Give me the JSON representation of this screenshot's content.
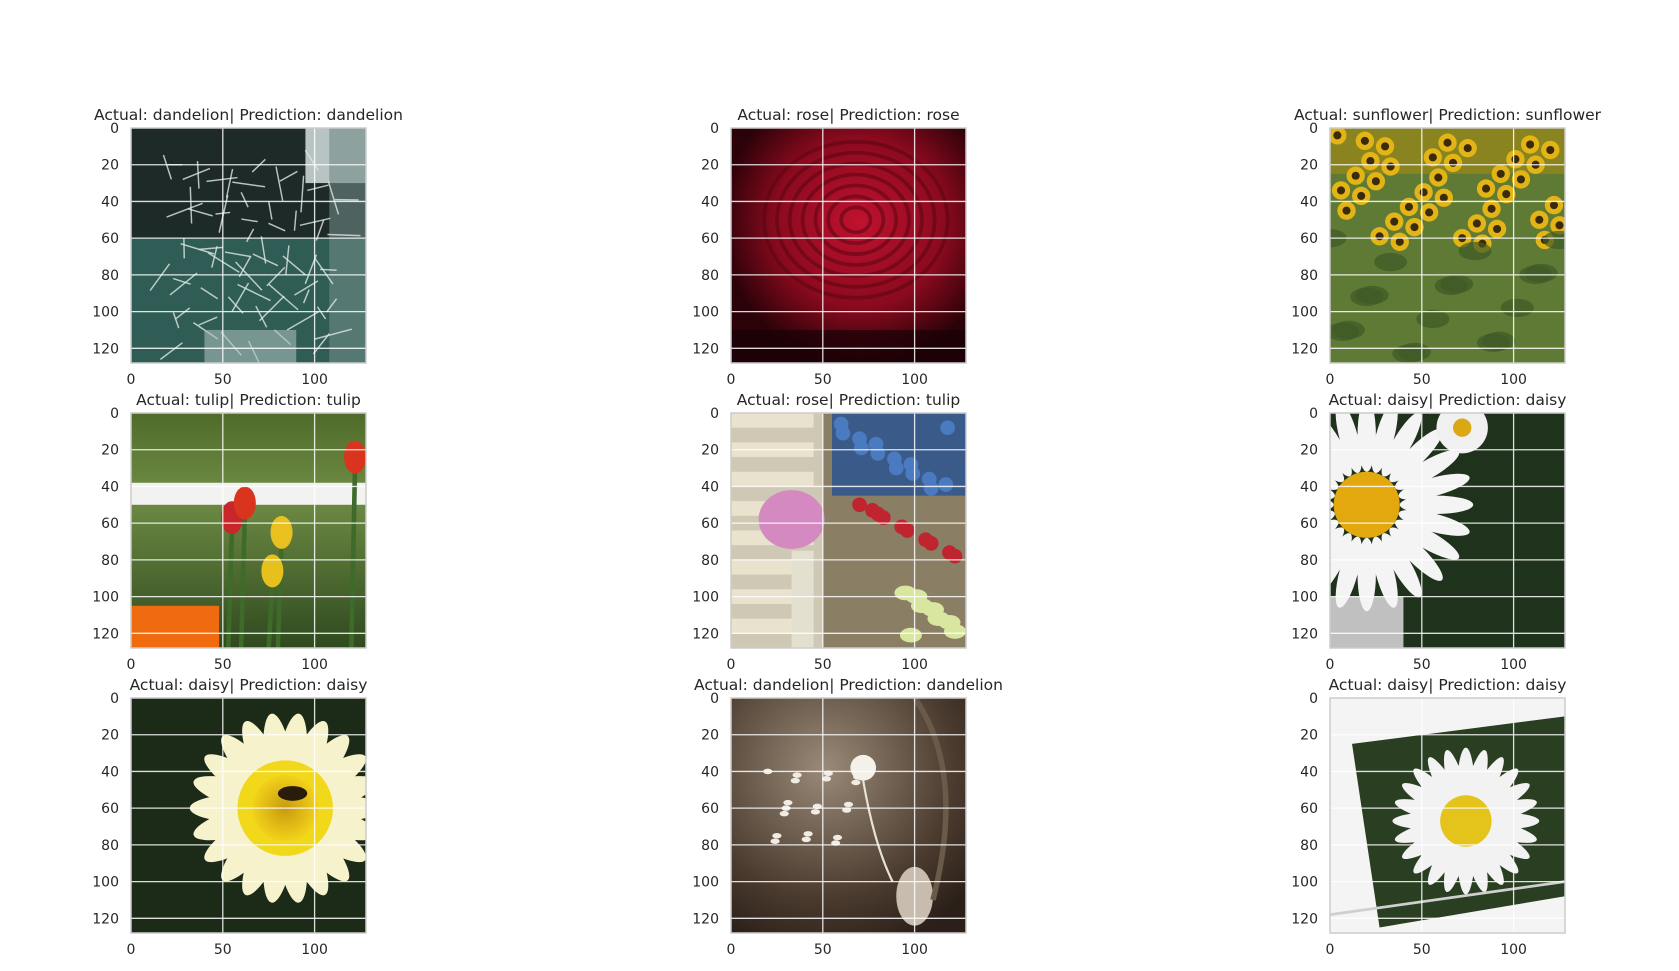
{
  "chart_data": [
    {
      "type": "image",
      "title": "Actual: dandelion| Prediction: dandelion",
      "xticks": [
        0,
        50,
        100
      ],
      "yticks": [
        0,
        20,
        40,
        60,
        80,
        100,
        120
      ],
      "xlim": [
        0,
        128
      ],
      "ylim": [
        128,
        0
      ],
      "grid": true,
      "scene": "dandelion"
    },
    {
      "type": "image",
      "title": "Actual: rose| Prediction: rose",
      "xticks": [
        0,
        50,
        100
      ],
      "yticks": [
        0,
        20,
        40,
        60,
        80,
        100,
        120
      ],
      "xlim": [
        0,
        128
      ],
      "ylim": [
        128,
        0
      ],
      "grid": true,
      "scene": "rose"
    },
    {
      "type": "image",
      "title": "Actual: sunflower| Prediction: sunflower",
      "xticks": [
        0,
        50,
        100
      ],
      "yticks": [
        0,
        20,
        40,
        60,
        80,
        100,
        120
      ],
      "xlim": [
        0,
        128
      ],
      "ylim": [
        128,
        0
      ],
      "grid": true,
      "scene": "sunflower"
    },
    {
      "type": "image",
      "title": "Actual: tulip| Prediction: tulip",
      "xticks": [
        0,
        50,
        100
      ],
      "yticks": [
        0,
        20,
        40,
        60,
        80,
        100,
        120
      ],
      "xlim": [
        0,
        128
      ],
      "ylim": [
        128,
        0
      ],
      "grid": true,
      "scene": "tulip"
    },
    {
      "type": "image",
      "title": "Actual: rose| Prediction: tulip",
      "xticks": [
        0,
        50,
        100
      ],
      "yticks": [
        0,
        20,
        40,
        60,
        80,
        100,
        120
      ],
      "xlim": [
        0,
        128
      ],
      "ylim": [
        128,
        0
      ],
      "grid": true,
      "scene": "bouquet"
    },
    {
      "type": "image",
      "title": "Actual: daisy| Prediction: daisy",
      "xticks": [
        0,
        50,
        100
      ],
      "yticks": [
        0,
        20,
        40,
        60,
        80,
        100,
        120
      ],
      "xlim": [
        0,
        128
      ],
      "ylim": [
        128,
        0
      ],
      "grid": true,
      "scene": "daisy-closeup"
    },
    {
      "type": "image",
      "title": "Actual: daisy| Prediction: daisy",
      "xticks": [
        0,
        50,
        100
      ],
      "yticks": [
        0,
        20,
        40,
        60,
        80,
        100,
        120
      ],
      "xlim": [
        0,
        128
      ],
      "ylim": [
        128,
        0
      ],
      "grid": true,
      "scene": "yellow-daisy"
    },
    {
      "type": "image",
      "title": "Actual: dandelion| Prediction: dandelion",
      "xticks": [
        0,
        50,
        100
      ],
      "yticks": [
        0,
        20,
        40,
        60,
        80,
        100,
        120
      ],
      "xlim": [
        0,
        128
      ],
      "ylim": [
        128,
        0
      ],
      "grid": true,
      "scene": "dandelion-sepia"
    },
    {
      "type": "image",
      "title": "Actual: daisy| Prediction: daisy",
      "xticks": [
        0,
        50,
        100
      ],
      "yticks": [
        0,
        20,
        40,
        60,
        80,
        100,
        120
      ],
      "xlim": [
        0,
        128
      ],
      "ylim": [
        128,
        0
      ],
      "grid": true,
      "scene": "daisy-tilted"
    }
  ]
}
